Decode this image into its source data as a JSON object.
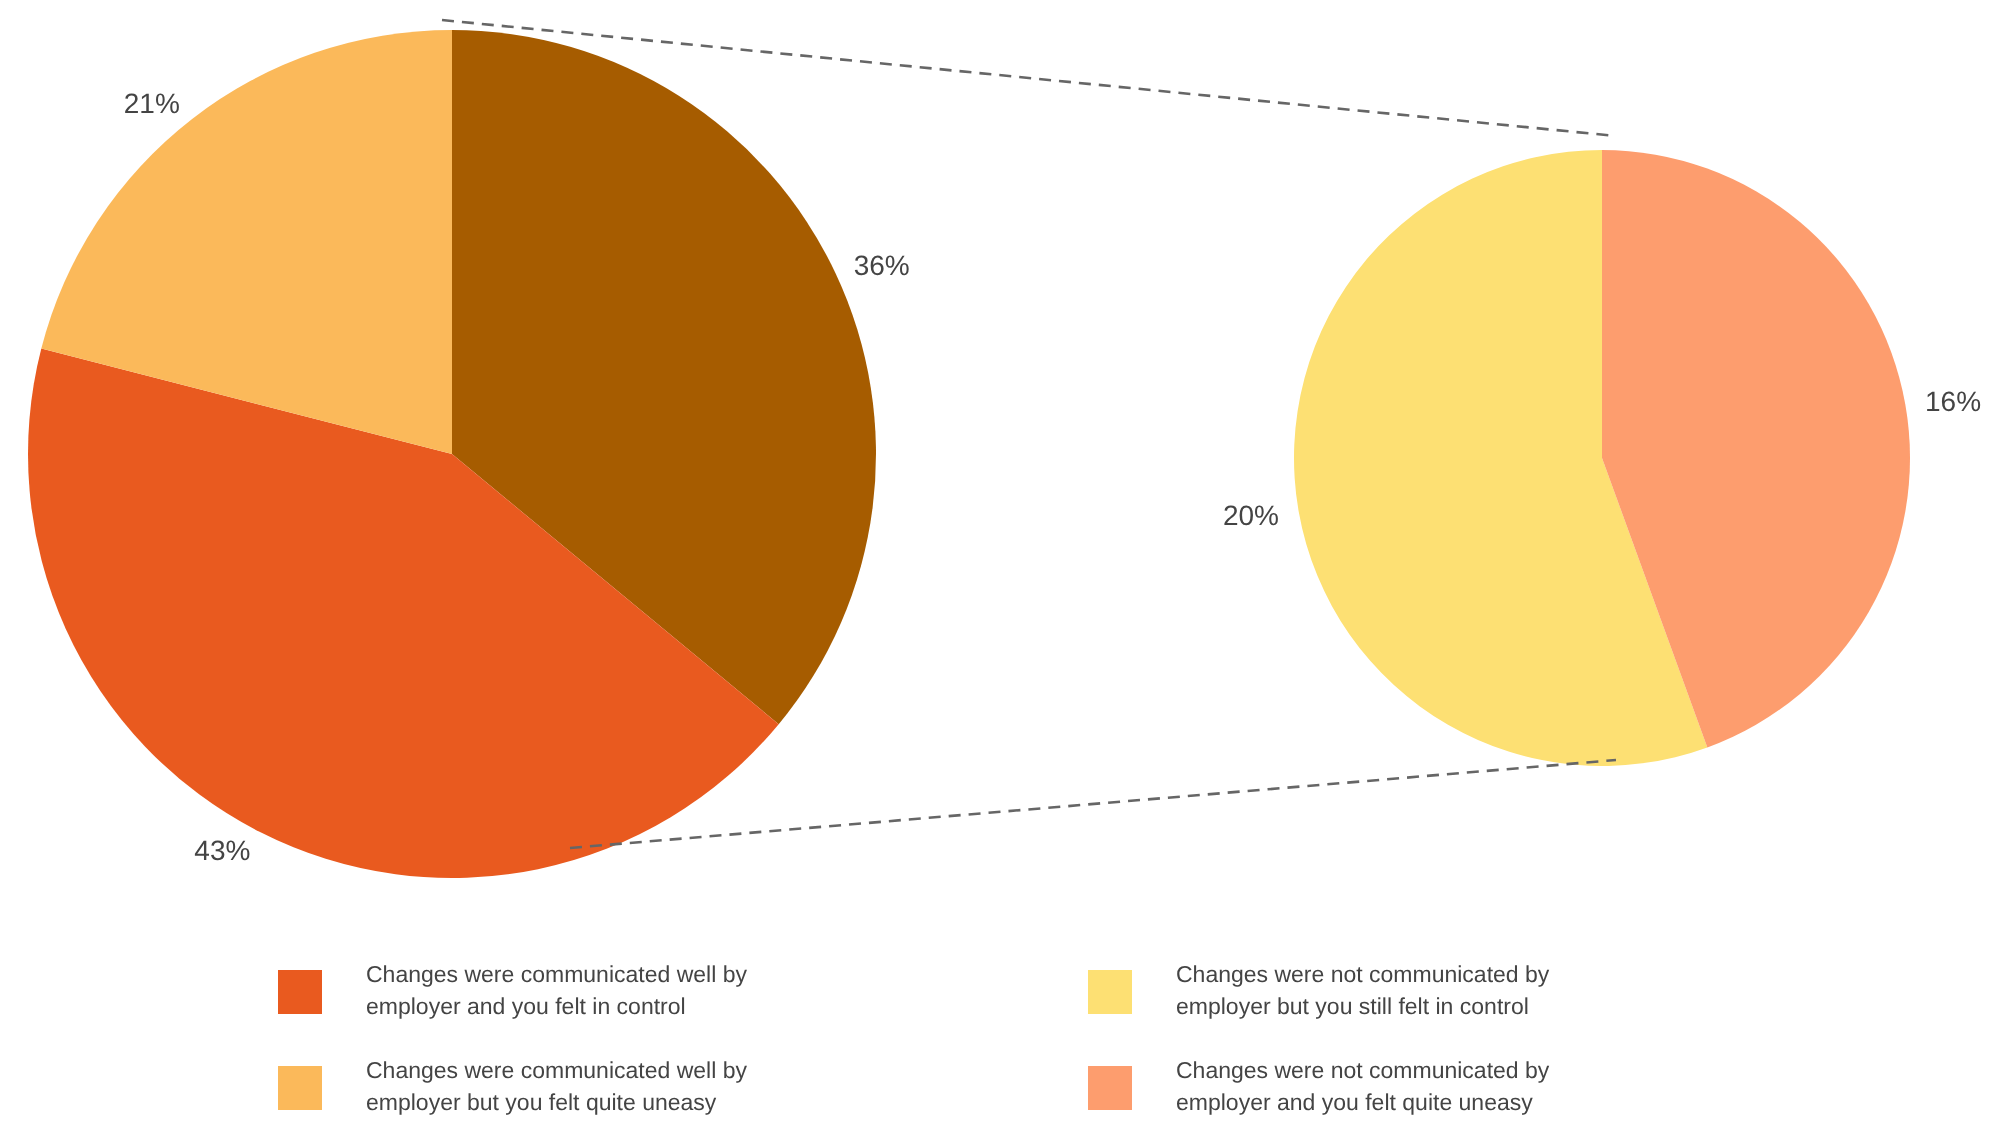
{
  "chart_data": [
    {
      "type": "pie",
      "categories": [
        null,
        "Changes were communicated well by employer and you felt in control",
        "Changes were communicated well by employer but you felt quite uneasy"
      ],
      "values": [
        36,
        43,
        21
      ],
      "value_labels": [
        "36%",
        "43%",
        "21%"
      ],
      "colors": [
        "#a65c00",
        "#e95a1f",
        "#fbb95a"
      ],
      "legend": "bottom"
    },
    {
      "type": "pie",
      "categories": [
        "Changes were not communicated by employer but you still felt in control",
        "Changes were not communicated by employer and you felt quite uneasy"
      ],
      "values": [
        20,
        16
      ],
      "value_labels": [
        "20%",
        "16%"
      ],
      "colors": [
        "#fde073",
        "#fd9d6e"
      ],
      "legend": "bottom"
    }
  ]
}
